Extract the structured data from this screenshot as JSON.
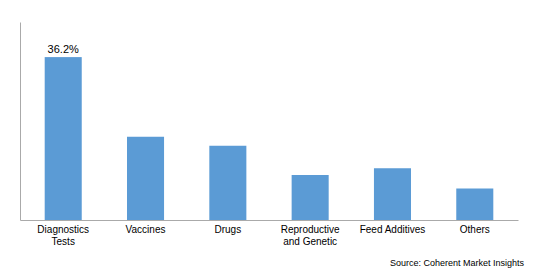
{
  "chart_data": {
    "type": "bar",
    "categories": [
      "Diagnostics\nTests",
      "Vaccines",
      "Drugs",
      "Reproductive\nand Genetic",
      "Feed Additives",
      "Others"
    ],
    "values": [
      36.2,
      18.5,
      16.5,
      10.0,
      11.5,
      7.0
    ],
    "value_labels": [
      "36.2%",
      null,
      null,
      null,
      null,
      null
    ],
    "data_labels": true,
    "color": "#5B9BD5",
    "ylim": [
      0,
      44
    ],
    "grid": false,
    "tick_labels": "x",
    "source": "Source: Coherent Market Insights"
  }
}
